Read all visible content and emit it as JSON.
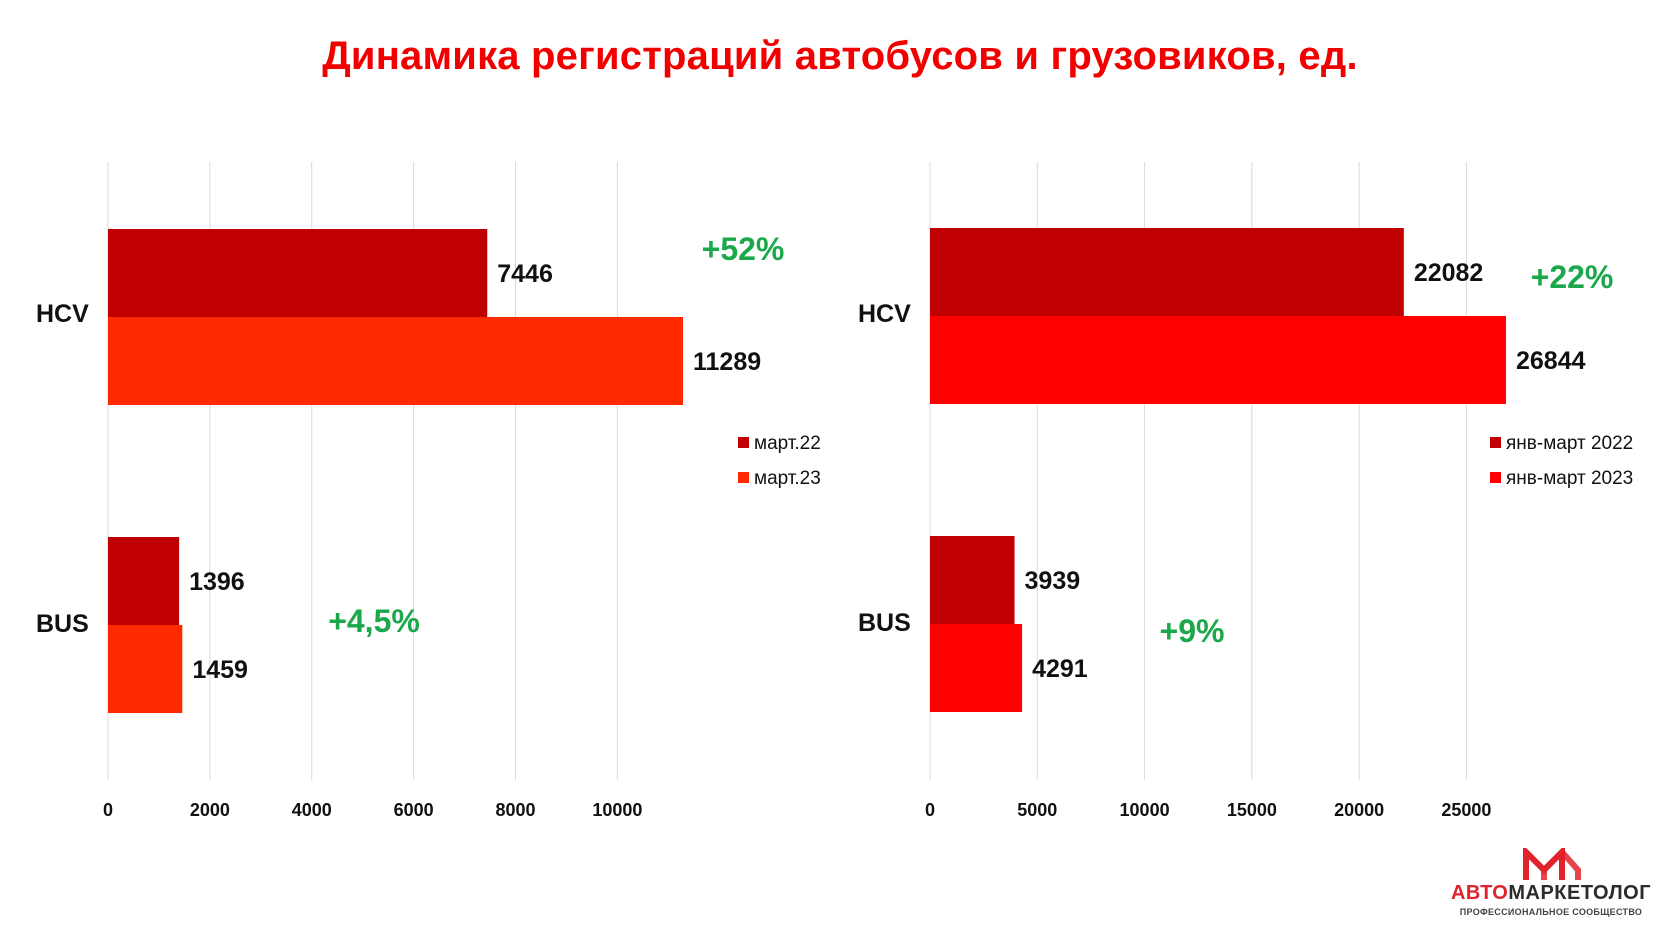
{
  "title": "Динамика регистраций автобусов и грузовиков, ед.",
  "colors": {
    "title": "#f20000",
    "growth": "#1aa84a",
    "label": "#111111",
    "grid": "#d9d9d9"
  },
  "chart_data": [
    {
      "type": "bar",
      "orientation": "horizontal",
      "categories": [
        "HCV",
        "BUS"
      ],
      "series": [
        {
          "name": "март.22",
          "values": [
            7446,
            1396
          ],
          "color": "#c00000"
        },
        {
          "name": "март.23",
          "values": [
            11289,
            1459
          ],
          "color": "#ff2a00"
        }
      ],
      "xlim": [
        0,
        12000
      ],
      "xticks": [
        0,
        2000,
        4000,
        6000,
        8000,
        10000
      ],
      "grid": true,
      "legend": "right",
      "annotations": [
        "+52%",
        "+4,5%"
      ]
    },
    {
      "type": "bar",
      "orientation": "horizontal",
      "categories": [
        "HCV",
        "BUS"
      ],
      "series": [
        {
          "name": "янв-март 2022",
          "values": [
            22082,
            3939
          ],
          "color": "#c00000"
        },
        {
          "name": "янв-март 2023",
          "values": [
            26844,
            4291
          ],
          "color": "#ff0000"
        }
      ],
      "xlim": [
        0,
        29000
      ],
      "xticks": [
        0,
        5000,
        10000,
        15000,
        20000,
        25000
      ],
      "grid": true,
      "legend": "right",
      "annotations": [
        "+22%",
        "+9%"
      ]
    }
  ],
  "logo": {
    "name_part1": "АВТО",
    "name_part2": "МАРКЕТОЛОГ",
    "tagline": "ПРОФЕССИОНАЛЬНОЕ СООБЩЕСТВО"
  }
}
